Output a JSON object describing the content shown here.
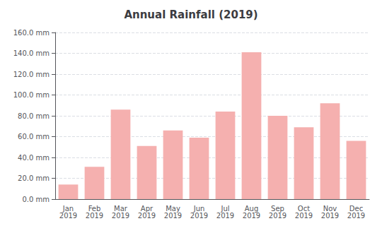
{
  "chart_data": {
    "type": "bar",
    "title": "Annual Rainfall (2019)",
    "categories": [
      "Jan\n2019",
      "Feb\n2019",
      "Mar\n2019",
      "Apr\n2019",
      "May\n2019",
      "Jun\n2019",
      "Jul\n2019",
      "Aug\n2019",
      "Sep\n2019",
      "Oct\n2019",
      "Nov\n2019",
      "Dec\n2019"
    ],
    "values": [
      14.0,
      31.0,
      86.0,
      51.0,
      66.0,
      59.0,
      84.0,
      141.0,
      80.0,
      69.0,
      92.0,
      56.0
    ],
    "color": "#f5b0af",
    "ylim": [
      0,
      160
    ],
    "yticks": [
      {
        "value": 0,
        "label": "0.0 mm"
      },
      {
        "value": 20,
        "label": "20.0 mm"
      },
      {
        "value": 40,
        "label": "40.0 mm"
      },
      {
        "value": 60,
        "label": "60.0 mm"
      },
      {
        "value": 80,
        "label": "80.0 mm"
      },
      {
        "value": 100,
        "label": "100.0 mm"
      },
      {
        "value": 120,
        "label": "120.0 mm"
      },
      {
        "value": 140,
        "label": "140.0 mm"
      },
      {
        "value": 160,
        "label": "160.0 mm"
      }
    ],
    "grid": true
  }
}
